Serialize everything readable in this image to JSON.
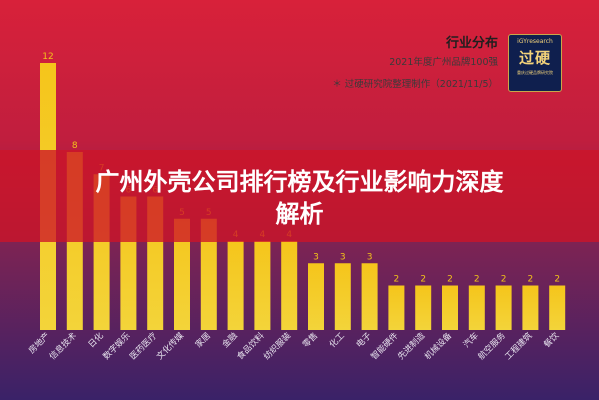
{
  "header": {
    "title": "行业分布",
    "subtitle": "2021年度广州品牌100强",
    "source": "＊ 过硬研究院整理制作（2021/11/5）"
  },
  "logo": {
    "top_text": "iGYresearch",
    "main_text": "过硬",
    "bottom_text": "重庆过硬品牌研究院"
  },
  "banner": {
    "line1": "广州外壳公司排行榜及行业影响力深度",
    "line2": "解析"
  },
  "colors": {
    "bar_top": "#f5c51b",
    "bar_bottom": "#f3d43a",
    "label": "#f2c21a"
  },
  "chart_data": {
    "type": "bar",
    "categories": [
      "房地产",
      "信息技术",
      "日化",
      "数字娱乐",
      "医药医疗",
      "文化传媒",
      "家居",
      "金融",
      "食品饮料",
      "纺织服装",
      "零售",
      "化工",
      "电子",
      "智能硬件",
      "先进制造",
      "机械设备",
      "汽车",
      "航空服务",
      "工程建筑",
      "餐饮"
    ],
    "values": [
      12,
      8,
      7,
      6,
      6,
      5,
      5,
      4,
      4,
      4,
      3,
      3,
      3,
      2,
      2,
      2,
      2,
      2,
      2,
      2
    ],
    "title": "行业分布",
    "ylim": [
      0,
      12
    ],
    "grid": false
  }
}
